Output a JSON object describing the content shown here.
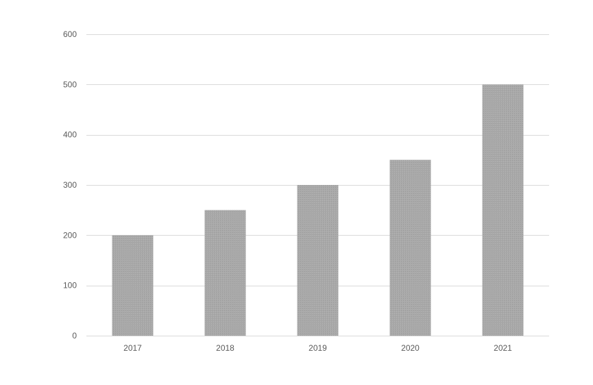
{
  "chart_data": {
    "type": "bar",
    "title": "",
    "xlabel": "",
    "ylabel": "",
    "categories": [
      "2017",
      "2018",
      "2019",
      "2020",
      "2021"
    ],
    "values": [
      200,
      250,
      300,
      350,
      500
    ],
    "ylim": [
      0,
      600
    ],
    "yticks": [
      0,
      100,
      200,
      300,
      400,
      500,
      600
    ],
    "grid": true,
    "legend": "none",
    "bar_color": "#a6a6a6",
    "grid_color": "#d9d9d9",
    "tick_label_color": "#595959"
  }
}
